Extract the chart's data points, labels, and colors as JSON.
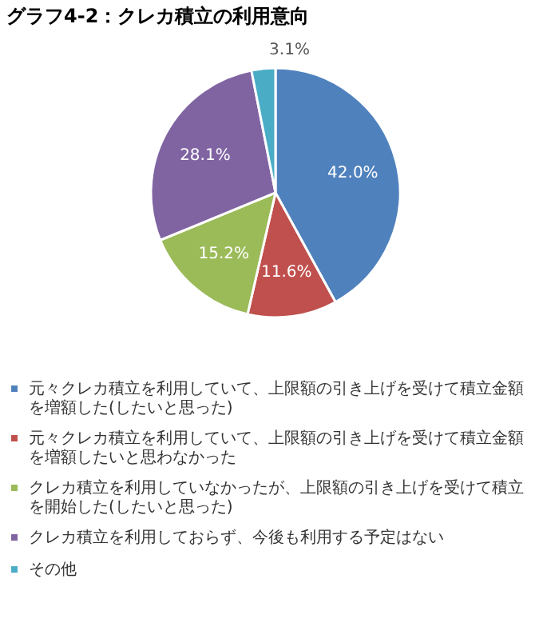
{
  "chart_data": {
    "type": "pie",
    "title": "グラフ4-2：クレカ積立の利用意向",
    "categories": [
      "元々クレカ積立を利用していて、上限額の引き上げを受けて積立金額を増額した(したいと思った)",
      "元々クレカ積立を利用していて、上限額の引き上げを受けて積立金額を増額したいと思わなかった",
      "クレカ積立を利用していなかったが、上限額の引き上げを受けて積立を開始した(したいと思った)",
      "クレカ積立を利用しておらず、今後も利用する予定はない",
      "その他"
    ],
    "values": [
      42.0,
      11.6,
      15.2,
      28.1,
      3.1
    ],
    "value_labels": [
      "42.0%",
      "11.6%",
      "15.2%",
      "28.1%",
      "3.1%"
    ],
    "colors": [
      "#4f81bd",
      "#c0504d",
      "#9bbb59",
      "#8064a2",
      "#4bacc6"
    ],
    "legend": "bottom"
  }
}
